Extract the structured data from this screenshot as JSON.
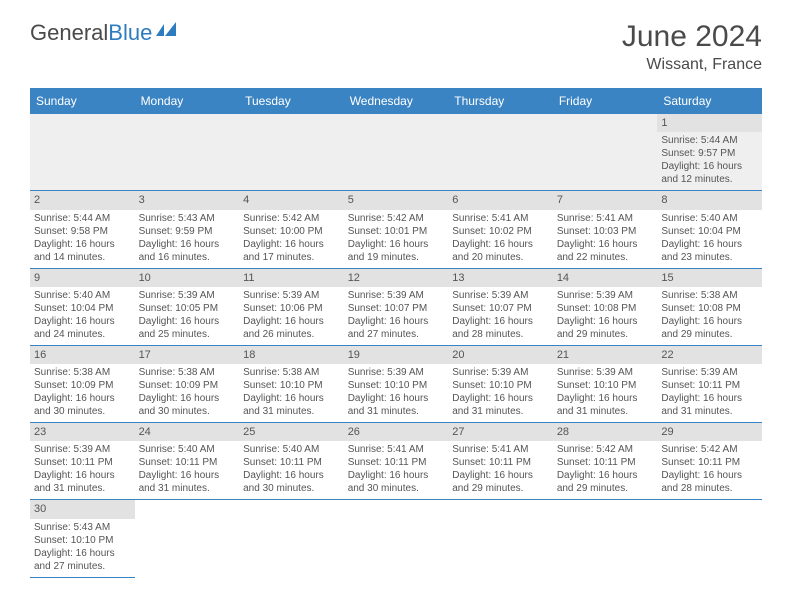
{
  "logo": {
    "word1": "General",
    "word2": "Blue"
  },
  "title": "June 2024",
  "location": "Wissant, France",
  "colors": {
    "header_bg": "#3b84c4",
    "header_text": "#ffffff",
    "daynum_bg": "#e2e2e2",
    "row_border": "#3b84c4",
    "empty_bg": "#efefef",
    "logo_blue": "#2e7cc0",
    "text": "#555555"
  },
  "day_headers": [
    "Sunday",
    "Monday",
    "Tuesday",
    "Wednesday",
    "Thursday",
    "Friday",
    "Saturday"
  ],
  "weeks": [
    [
      null,
      null,
      null,
      null,
      null,
      null,
      {
        "n": "1",
        "sunrise": "Sunrise: 5:44 AM",
        "sunset": "Sunset: 9:57 PM",
        "dl1": "Daylight: 16 hours",
        "dl2": "and 12 minutes."
      }
    ],
    [
      {
        "n": "2",
        "sunrise": "Sunrise: 5:44 AM",
        "sunset": "Sunset: 9:58 PM",
        "dl1": "Daylight: 16 hours",
        "dl2": "and 14 minutes."
      },
      {
        "n": "3",
        "sunrise": "Sunrise: 5:43 AM",
        "sunset": "Sunset: 9:59 PM",
        "dl1": "Daylight: 16 hours",
        "dl2": "and 16 minutes."
      },
      {
        "n": "4",
        "sunrise": "Sunrise: 5:42 AM",
        "sunset": "Sunset: 10:00 PM",
        "dl1": "Daylight: 16 hours",
        "dl2": "and 17 minutes."
      },
      {
        "n": "5",
        "sunrise": "Sunrise: 5:42 AM",
        "sunset": "Sunset: 10:01 PM",
        "dl1": "Daylight: 16 hours",
        "dl2": "and 19 minutes."
      },
      {
        "n": "6",
        "sunrise": "Sunrise: 5:41 AM",
        "sunset": "Sunset: 10:02 PM",
        "dl1": "Daylight: 16 hours",
        "dl2": "and 20 minutes."
      },
      {
        "n": "7",
        "sunrise": "Sunrise: 5:41 AM",
        "sunset": "Sunset: 10:03 PM",
        "dl1": "Daylight: 16 hours",
        "dl2": "and 22 minutes."
      },
      {
        "n": "8",
        "sunrise": "Sunrise: 5:40 AM",
        "sunset": "Sunset: 10:04 PM",
        "dl1": "Daylight: 16 hours",
        "dl2": "and 23 minutes."
      }
    ],
    [
      {
        "n": "9",
        "sunrise": "Sunrise: 5:40 AM",
        "sunset": "Sunset: 10:04 PM",
        "dl1": "Daylight: 16 hours",
        "dl2": "and 24 minutes."
      },
      {
        "n": "10",
        "sunrise": "Sunrise: 5:39 AM",
        "sunset": "Sunset: 10:05 PM",
        "dl1": "Daylight: 16 hours",
        "dl2": "and 25 minutes."
      },
      {
        "n": "11",
        "sunrise": "Sunrise: 5:39 AM",
        "sunset": "Sunset: 10:06 PM",
        "dl1": "Daylight: 16 hours",
        "dl2": "and 26 minutes."
      },
      {
        "n": "12",
        "sunrise": "Sunrise: 5:39 AM",
        "sunset": "Sunset: 10:07 PM",
        "dl1": "Daylight: 16 hours",
        "dl2": "and 27 minutes."
      },
      {
        "n": "13",
        "sunrise": "Sunrise: 5:39 AM",
        "sunset": "Sunset: 10:07 PM",
        "dl1": "Daylight: 16 hours",
        "dl2": "and 28 minutes."
      },
      {
        "n": "14",
        "sunrise": "Sunrise: 5:39 AM",
        "sunset": "Sunset: 10:08 PM",
        "dl1": "Daylight: 16 hours",
        "dl2": "and 29 minutes."
      },
      {
        "n": "15",
        "sunrise": "Sunrise: 5:38 AM",
        "sunset": "Sunset: 10:08 PM",
        "dl1": "Daylight: 16 hours",
        "dl2": "and 29 minutes."
      }
    ],
    [
      {
        "n": "16",
        "sunrise": "Sunrise: 5:38 AM",
        "sunset": "Sunset: 10:09 PM",
        "dl1": "Daylight: 16 hours",
        "dl2": "and 30 minutes."
      },
      {
        "n": "17",
        "sunrise": "Sunrise: 5:38 AM",
        "sunset": "Sunset: 10:09 PM",
        "dl1": "Daylight: 16 hours",
        "dl2": "and 30 minutes."
      },
      {
        "n": "18",
        "sunrise": "Sunrise: 5:38 AM",
        "sunset": "Sunset: 10:10 PM",
        "dl1": "Daylight: 16 hours",
        "dl2": "and 31 minutes."
      },
      {
        "n": "19",
        "sunrise": "Sunrise: 5:39 AM",
        "sunset": "Sunset: 10:10 PM",
        "dl1": "Daylight: 16 hours",
        "dl2": "and 31 minutes."
      },
      {
        "n": "20",
        "sunrise": "Sunrise: 5:39 AM",
        "sunset": "Sunset: 10:10 PM",
        "dl1": "Daylight: 16 hours",
        "dl2": "and 31 minutes."
      },
      {
        "n": "21",
        "sunrise": "Sunrise: 5:39 AM",
        "sunset": "Sunset: 10:10 PM",
        "dl1": "Daylight: 16 hours",
        "dl2": "and 31 minutes."
      },
      {
        "n": "22",
        "sunrise": "Sunrise: 5:39 AM",
        "sunset": "Sunset: 10:11 PM",
        "dl1": "Daylight: 16 hours",
        "dl2": "and 31 minutes."
      }
    ],
    [
      {
        "n": "23",
        "sunrise": "Sunrise: 5:39 AM",
        "sunset": "Sunset: 10:11 PM",
        "dl1": "Daylight: 16 hours",
        "dl2": "and 31 minutes."
      },
      {
        "n": "24",
        "sunrise": "Sunrise: 5:40 AM",
        "sunset": "Sunset: 10:11 PM",
        "dl1": "Daylight: 16 hours",
        "dl2": "and 31 minutes."
      },
      {
        "n": "25",
        "sunrise": "Sunrise: 5:40 AM",
        "sunset": "Sunset: 10:11 PM",
        "dl1": "Daylight: 16 hours",
        "dl2": "and 30 minutes."
      },
      {
        "n": "26",
        "sunrise": "Sunrise: 5:41 AM",
        "sunset": "Sunset: 10:11 PM",
        "dl1": "Daylight: 16 hours",
        "dl2": "and 30 minutes."
      },
      {
        "n": "27",
        "sunrise": "Sunrise: 5:41 AM",
        "sunset": "Sunset: 10:11 PM",
        "dl1": "Daylight: 16 hours",
        "dl2": "and 29 minutes."
      },
      {
        "n": "28",
        "sunrise": "Sunrise: 5:42 AM",
        "sunset": "Sunset: 10:11 PM",
        "dl1": "Daylight: 16 hours",
        "dl2": "and 29 minutes."
      },
      {
        "n": "29",
        "sunrise": "Sunrise: 5:42 AM",
        "sunset": "Sunset: 10:11 PM",
        "dl1": "Daylight: 16 hours",
        "dl2": "and 28 minutes."
      }
    ],
    [
      {
        "n": "30",
        "sunrise": "Sunrise: 5:43 AM",
        "sunset": "Sunset: 10:10 PM",
        "dl1": "Daylight: 16 hours",
        "dl2": "and 27 minutes."
      },
      null,
      null,
      null,
      null,
      null,
      null
    ]
  ]
}
